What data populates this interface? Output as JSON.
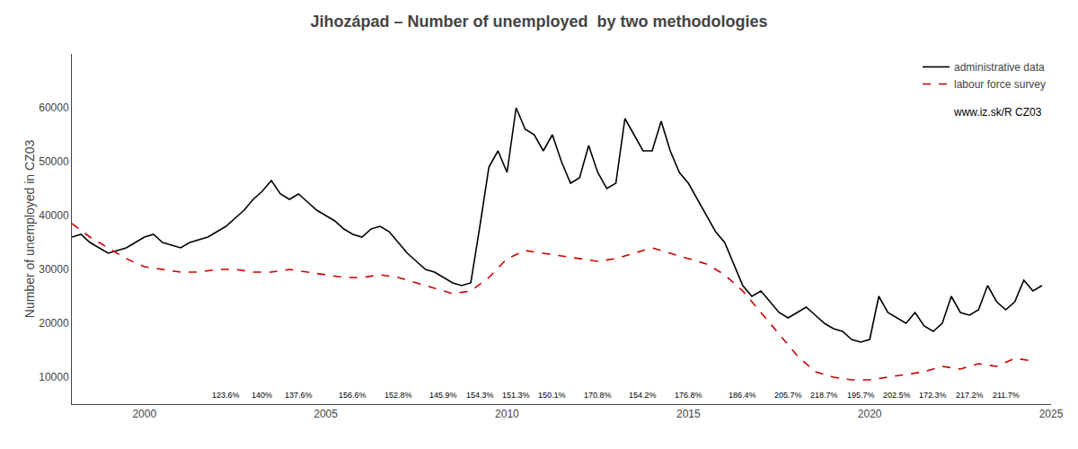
{
  "chart_data": {
    "type": "line",
    "title": "Jihozápad – Number of unemployed  by two methodologies",
    "ylabel": "Number of unemployed in CZ03",
    "xlim": [
      1998.0,
      2025.0
    ],
    "ylim": [
      5000,
      70000
    ],
    "xticks": [
      2000,
      2005,
      2010,
      2015,
      2020,
      2025
    ],
    "yticks": [
      10000,
      20000,
      30000,
      40000,
      50000,
      60000
    ],
    "grid": false,
    "legend": "upper right",
    "note": "www.iz.sk/R CZ03",
    "annotations": [
      {
        "x": 2002.25,
        "text": "123.6%"
      },
      {
        "x": 2003.25,
        "text": "140%"
      },
      {
        "x": 2004.25,
        "text": "137.6%"
      },
      {
        "x": 2005.75,
        "text": "156.6%"
      },
      {
        "x": 2007.0,
        "text": "152.8%"
      },
      {
        "x": 2008.25,
        "text": "145.9%"
      },
      {
        "x": 2009.25,
        "text": "154.3%"
      },
      {
        "x": 2010.25,
        "text": "151.3%"
      },
      {
        "x": 2011.25,
        "text": "150.1%"
      },
      {
        "x": 2012.5,
        "text": "170.8%"
      },
      {
        "x": 2013.75,
        "text": "154.2%"
      },
      {
        "x": 2015.0,
        "text": "176.8%"
      },
      {
        "x": 2016.5,
        "text": "186.4%"
      },
      {
        "x": 2017.75,
        "text": "205.7%"
      },
      {
        "x": 2018.75,
        "text": "218.7%"
      },
      {
        "x": 2019.75,
        "text": "195.7%"
      },
      {
        "x": 2020.75,
        "text": "202.5%"
      },
      {
        "x": 2021.75,
        "text": "172.3%"
      },
      {
        "x": 2022.75,
        "text": "217.2%"
      },
      {
        "x": 2023.75,
        "text": "211.7%"
      }
    ],
    "series": [
      {
        "name": "administrative data",
        "color": "black",
        "line_style": "solid",
        "x": [
          1998.0,
          1998.25,
          1998.5,
          1998.75,
          1999.0,
          1999.25,
          1999.5,
          1999.75,
          2000.0,
          2000.25,
          2000.5,
          2000.75,
          2001.0,
          2001.25,
          2001.5,
          2001.75,
          2002.0,
          2002.25,
          2002.5,
          2002.75,
          2003.0,
          2003.25,
          2003.5,
          2003.75,
          2004.0,
          2004.25,
          2004.5,
          2004.75,
          2005.0,
          2005.25,
          2005.5,
          2005.75,
          2006.0,
          2006.25,
          2006.5,
          2006.75,
          2007.0,
          2007.25,
          2007.5,
          2007.75,
          2008.0,
          2008.25,
          2008.5,
          2008.75,
          2009.0,
          2009.25,
          2009.5,
          2009.75,
          2010.0,
          2010.25,
          2010.5,
          2010.75,
          2011.0,
          2011.25,
          2011.5,
          2011.75,
          2012.0,
          2012.25,
          2012.5,
          2012.75,
          2013.0,
          2013.25,
          2013.5,
          2013.75,
          2014.0,
          2014.25,
          2014.5,
          2014.75,
          2015.0,
          2015.25,
          2015.5,
          2015.75,
          2016.0,
          2016.25,
          2016.5,
          2016.75,
          2017.0,
          2017.25,
          2017.5,
          2017.75,
          2018.0,
          2018.25,
          2018.5,
          2018.75,
          2019.0,
          2019.25,
          2019.5,
          2019.75,
          2020.0,
          2020.25,
          2020.5,
          2020.75,
          2021.0,
          2021.25,
          2021.5,
          2021.75,
          2022.0,
          2022.25,
          2022.5,
          2022.75,
          2023.0,
          2023.25,
          2023.5,
          2023.75,
          2024.0,
          2024.25,
          2024.5,
          2024.75
        ],
        "values": [
          36000,
          36500,
          35000,
          34000,
          33000,
          33500,
          34000,
          35000,
          36000,
          36500,
          35000,
          34500,
          34000,
          35000,
          35500,
          36000,
          37000,
          38000,
          39500,
          41000,
          43000,
          44500,
          46500,
          44000,
          43000,
          44000,
          42500,
          41000,
          40000,
          39000,
          37500,
          36500,
          36000,
          37500,
          38000,
          37000,
          35000,
          33000,
          31500,
          30000,
          29500,
          28500,
          27500,
          27000,
          27500,
          38000,
          49000,
          52000,
          48000,
          60000,
          56000,
          55000,
          52000,
          55000,
          50000,
          46000,
          47000,
          53000,
          48000,
          45000,
          46000,
          58000,
          55000,
          52000,
          52000,
          57500,
          52000,
          48000,
          46000,
          43000,
          40000,
          37000,
          35000,
          31000,
          27000,
          25000,
          26000,
          24000,
          22000,
          21000,
          22000,
          23000,
          21500,
          20000,
          19000,
          18500,
          17000,
          16500,
          17000,
          25000,
          22000,
          21000,
          20000,
          22000,
          19500,
          18500,
          20000,
          25000,
          22000,
          21500,
          22500,
          27000,
          24000,
          22500,
          24000,
          28000,
          26000,
          27000
        ]
      },
      {
        "name": "labour force survey",
        "color": "#cc0000",
        "line_style": "dashed",
        "x": [
          1998.0,
          1998.5,
          1999.0,
          1999.5,
          2000.0,
          2000.5,
          2001.0,
          2001.5,
          2002.0,
          2002.5,
          2003.0,
          2003.5,
          2004.0,
          2004.5,
          2005.0,
          2005.5,
          2006.0,
          2006.5,
          2007.0,
          2007.5,
          2008.0,
          2008.5,
          2009.0,
          2009.5,
          2010.0,
          2010.5,
          2011.0,
          2011.5,
          2012.0,
          2012.5,
          2013.0,
          2013.5,
          2014.0,
          2014.5,
          2015.0,
          2015.5,
          2016.0,
          2016.5,
          2017.0,
          2017.5,
          2018.0,
          2018.5,
          2019.0,
          2019.5,
          2020.0,
          2020.5,
          2021.0,
          2021.5,
          2022.0,
          2022.5,
          2023.0,
          2023.5,
          2024.0,
          2024.5
        ],
        "values": [
          38500,
          36000,
          34000,
          32000,
          30500,
          30000,
          29500,
          29500,
          30000,
          30000,
          29500,
          29500,
          30000,
          29500,
          29000,
          28500,
          28500,
          29000,
          28500,
          27500,
          26500,
          25500,
          26000,
          28500,
          32000,
          33500,
          33000,
          32500,
          32000,
          31500,
          32000,
          33000,
          34000,
          33000,
          32000,
          31000,
          29000,
          26000,
          22000,
          18000,
          14000,
          11000,
          10000,
          9500,
          9500,
          10000,
          10500,
          11000,
          12000,
          11500,
          12500,
          12000,
          13500,
          13000
        ]
      }
    ]
  }
}
